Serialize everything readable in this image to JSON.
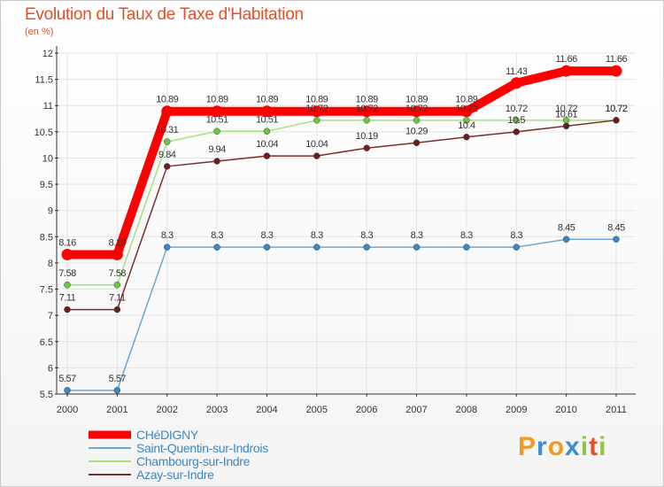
{
  "chart_data": {
    "type": "line",
    "title": "Evolution du Taux de Taxe d'Habitation",
    "ylabel": "(en %)",
    "xlabel": "",
    "x": [
      "2000",
      "2001",
      "2002",
      "2003",
      "2004",
      "2005",
      "2006",
      "2007",
      "2008",
      "2009",
      "2010",
      "2011"
    ],
    "ylim": [
      5.5,
      12
    ],
    "yticks": [
      "5.5",
      "6",
      "6.5",
      "7",
      "7.5",
      "8",
      "8.5",
      "9",
      "9.5",
      "10",
      "10.5",
      "11",
      "11.5",
      "12"
    ],
    "grid": true,
    "legend_position": "bottom-left",
    "series": [
      {
        "name": "CHéDIGNY",
        "color": "#ff0000",
        "values": [
          8.16,
          8.16,
          10.89,
          10.89,
          10.89,
          10.89,
          10.89,
          10.89,
          10.89,
          11.43,
          11.66,
          11.66
        ],
        "labels": [
          "8.16",
          "8.16",
          "10.89",
          "10.89",
          "10.89",
          "10.89",
          "10.89",
          "10.89",
          "10.89",
          "11.43",
          "11.66",
          "11.66"
        ]
      },
      {
        "name": "Saint-Quentin-sur-Indrois",
        "color": "#6fa5d6",
        "marker_color": "#3d87c6",
        "values": [
          5.57,
          5.57,
          8.3,
          8.3,
          8.3,
          8.3,
          8.3,
          8.3,
          8.3,
          8.3,
          8.45,
          8.45
        ],
        "labels": [
          "5.57",
          "5.57",
          "8.3",
          "8.3",
          "8.3",
          "8.3",
          "8.3",
          "8.3",
          "8.3",
          "8.3",
          "8.45",
          "8.45"
        ]
      },
      {
        "name": "Chambourg-sur-Indre",
        "color": "#a8e07c",
        "marker_color": "#6cc43f",
        "values": [
          7.58,
          7.58,
          10.31,
          10.51,
          10.51,
          10.72,
          10.72,
          10.72,
          10.72,
          10.72,
          10.72,
          10.72
        ],
        "labels": [
          "7.58",
          "7.58",
          "10.31",
          "10.51",
          "10.51",
          "10.72",
          "10.72",
          "10.72",
          "10.72",
          "10.72",
          "10.72",
          "10.72"
        ]
      },
      {
        "name": "Azay-sur-Indre",
        "color": "#7b2c2c",
        "marker_color": "#6a1f1f",
        "values": [
          7.11,
          7.11,
          9.84,
          9.94,
          10.04,
          10.04,
          10.19,
          10.29,
          10.4,
          10.5,
          10.61,
          10.72
        ],
        "labels": [
          "7.11",
          "7.11",
          "9.84",
          "9.94",
          "10.04",
          "10.04",
          "10.19",
          "10.29",
          "10.4",
          "10.5",
          "10.61",
          "10.72"
        ]
      }
    ]
  },
  "brand": {
    "letters": [
      "P",
      "r",
      "o",
      "x",
      "i",
      "t",
      "i"
    ],
    "colors": [
      "#f29a1f",
      "#3a8fd6",
      "#f29a1f",
      "#3a8fd6",
      "#8dc63f",
      "#e0502a",
      "#8dc63f"
    ]
  }
}
